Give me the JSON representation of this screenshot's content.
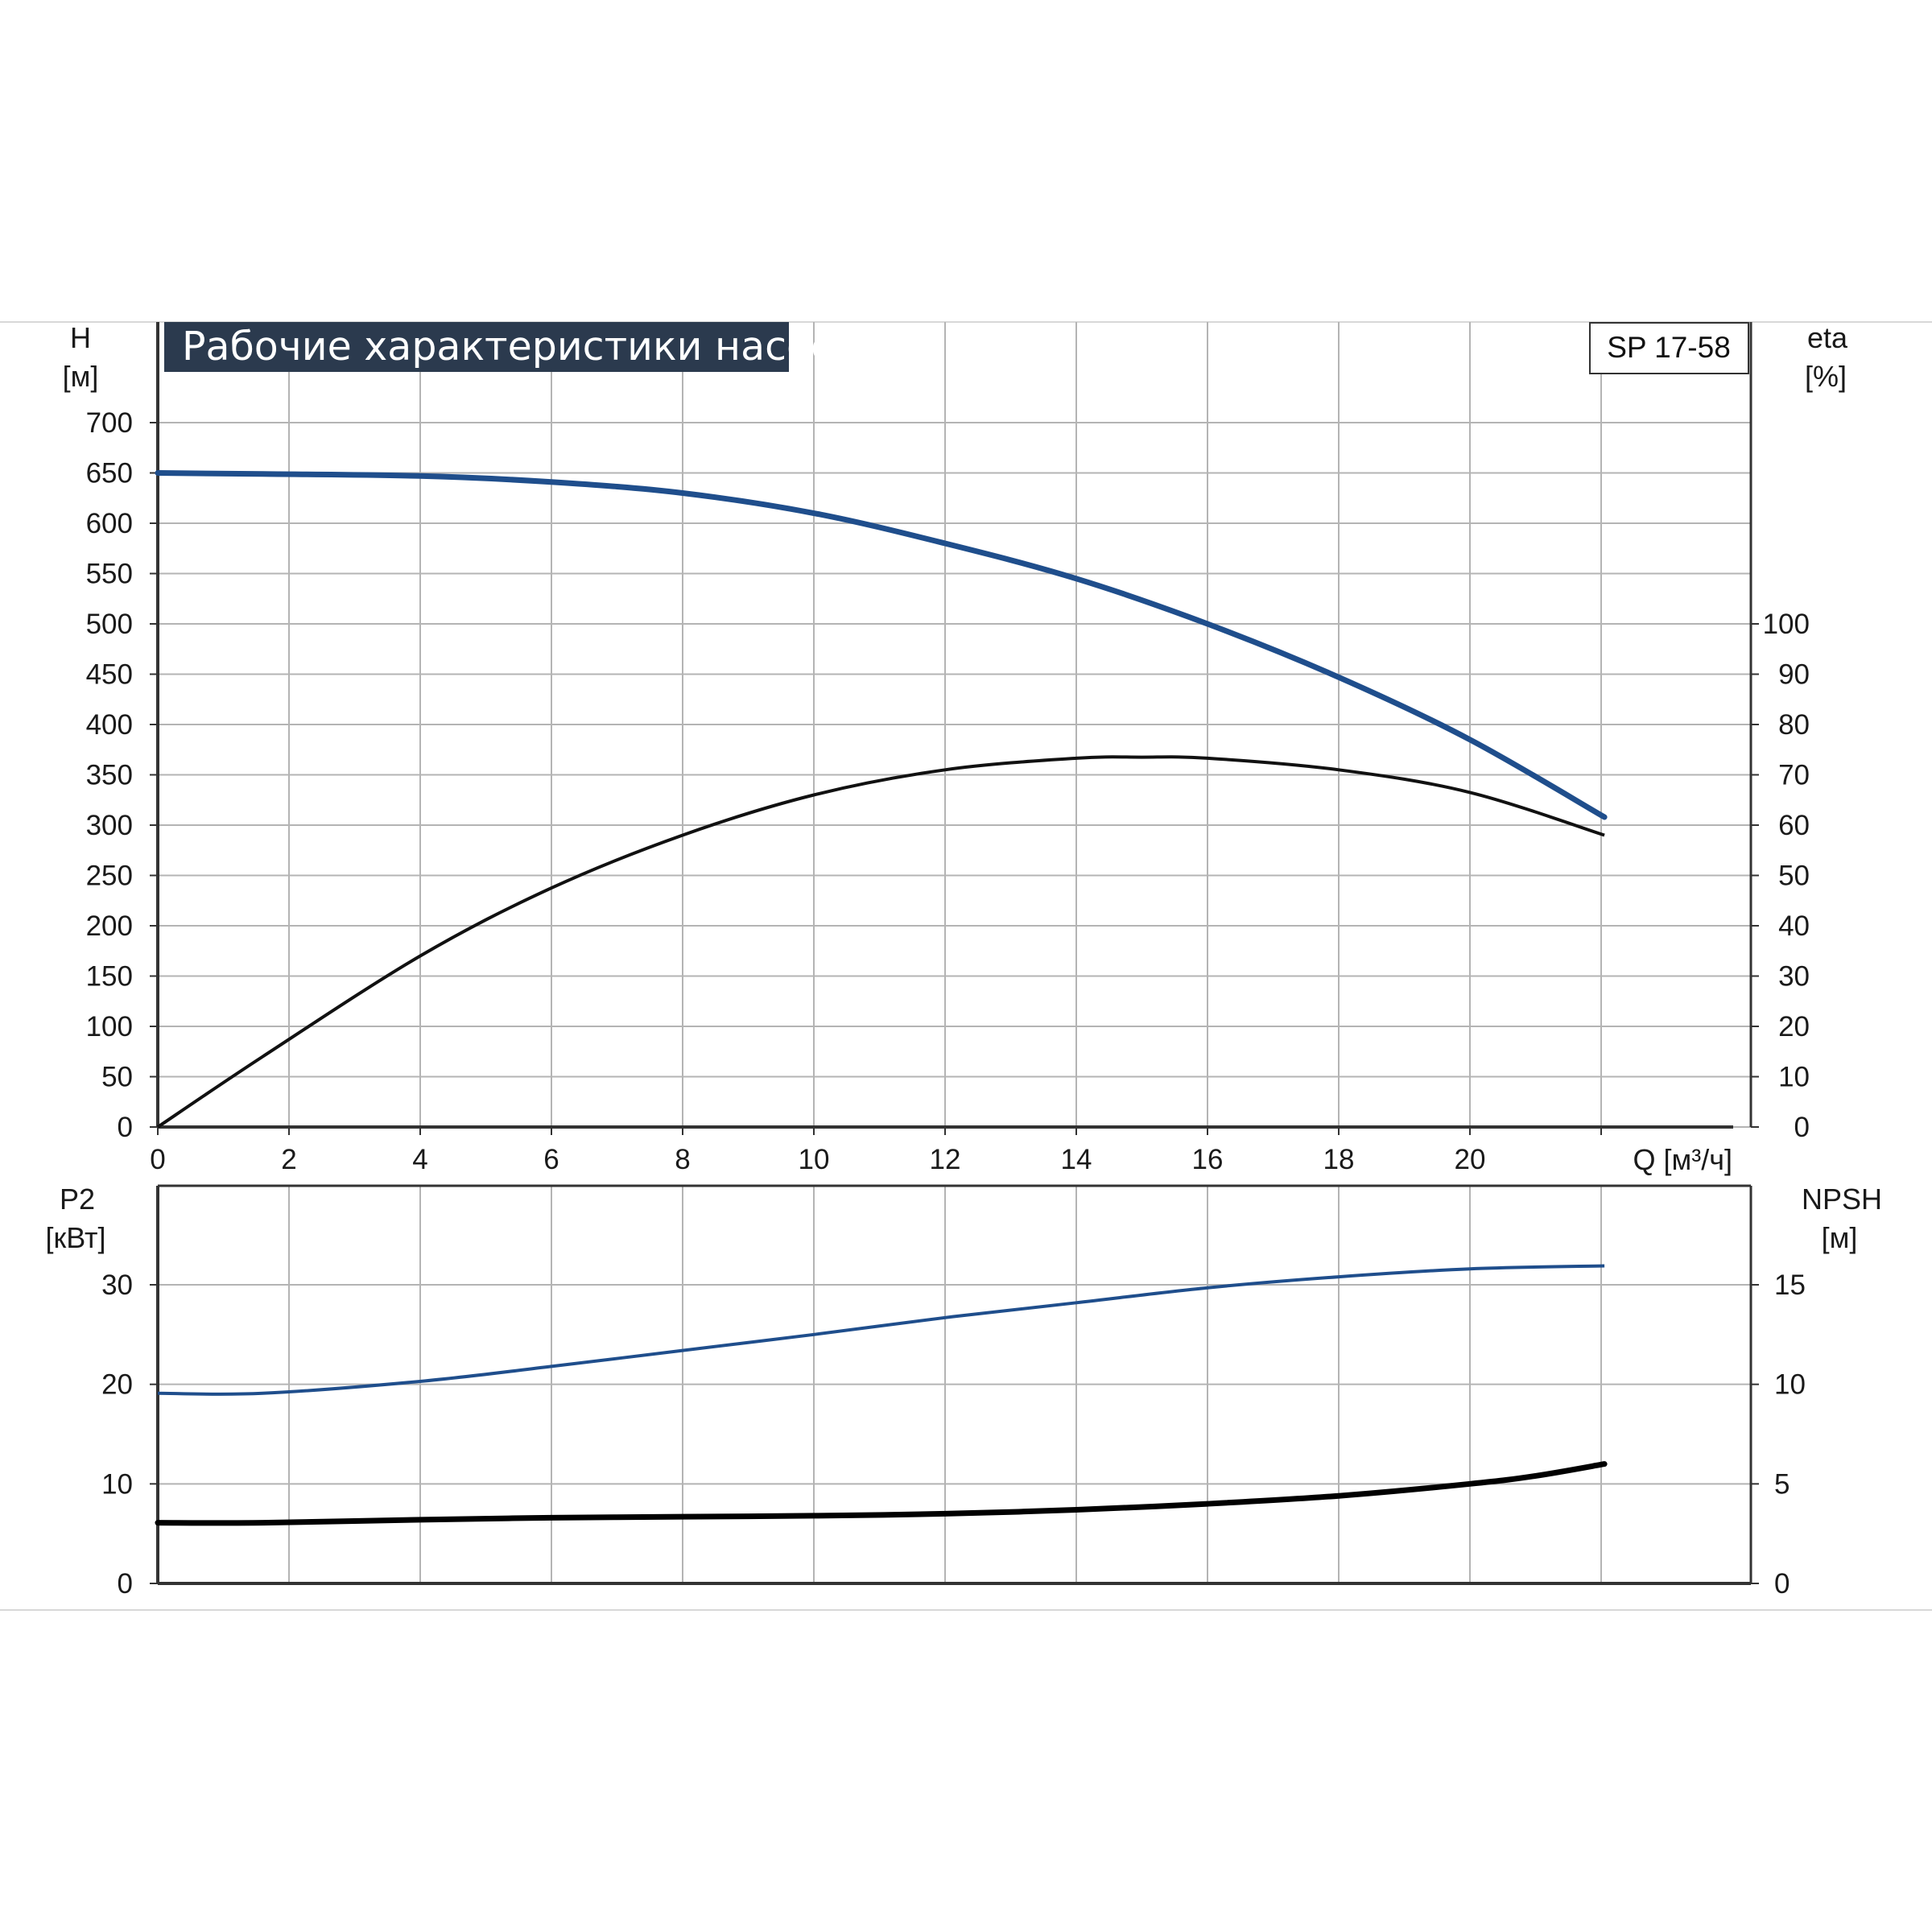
{
  "colors": {
    "head_curve": "#1f4e8c",
    "power_curve": "#1f4e8c",
    "efficiency_curve": "#111111",
    "npsh_curve": "#000000",
    "title_bg": "#2b3a4e",
    "grid": "#b4b4b4",
    "axis": "#333333"
  },
  "chart_data": [
    {
      "type": "line",
      "title": "Рабочие характеристики насоса",
      "model": "SP 17-58",
      "x_label": "Q [м³/ч]",
      "xlim": [
        0,
        22
      ],
      "x_ticks": [
        "0",
        "2",
        "4",
        "6",
        "8",
        "10",
        "12",
        "14",
        "16",
        "18",
        "20"
      ],
      "y_left_label_line1": "H",
      "y_left_label_line2": "[м]",
      "y_left_lim": [
        0,
        700
      ],
      "y_left_ticks": [
        "0",
        "50",
        "100",
        "150",
        "200",
        "250",
        "300",
        "350",
        "400",
        "450",
        "500",
        "550",
        "600",
        "650",
        "700"
      ],
      "y_right_label_line1": "eta",
      "y_right_label_line2": "[%]",
      "y_right_lim": [
        0,
        140
      ],
      "y_right_ticks": [
        "0",
        "10",
        "20",
        "30",
        "40",
        "50",
        "60",
        "70",
        "80",
        "90",
        "100"
      ],
      "grid": true,
      "series": [
        {
          "axis": "left",
          "x": [
            0,
            1.6,
            4,
            6,
            8,
            10,
            12,
            14,
            16,
            18,
            20,
            22.05
          ],
          "y": [
            650,
            649,
            647,
            641,
            630,
            610,
            580,
            545,
            500,
            447,
            385,
            308
          ]
        },
        {
          "axis": "right",
          "x": [
            0,
            1.6,
            4,
            6,
            8,
            10,
            12,
            14,
            15,
            16,
            18,
            20,
            22.05
          ],
          "y": [
            0,
            14,
            34,
            47.5,
            58,
            66,
            71,
            73.3,
            73.5,
            73.3,
            71,
            66.5,
            58
          ]
        }
      ]
    },
    {
      "type": "line",
      "y_left_label_line1": "P2",
      "y_left_label_line2": "[кВт]",
      "y_left_lim": [
        0,
        35
      ],
      "y_left_ticks": [
        "0",
        "10",
        "20",
        "30"
      ],
      "y_right_label_line1": "NPSH",
      "y_right_label_line2": "[м]",
      "y_right_lim": [
        0,
        17.5
      ],
      "y_right_ticks": [
        "0",
        "5",
        "10",
        "15"
      ],
      "xlim": [
        0,
        22
      ],
      "grid": true,
      "series": [
        {
          "axis": "left",
          "x": [
            0,
            1.6,
            4,
            6,
            8,
            10,
            12,
            14,
            16,
            18,
            20,
            22.05
          ],
          "y": [
            19.1,
            19.1,
            20.3,
            21.8,
            23.4,
            25.0,
            26.7,
            28.2,
            29.7,
            30.8,
            31.6,
            31.9
          ]
        },
        {
          "axis": "right",
          "x": [
            0,
            1.6,
            4,
            6,
            8,
            10,
            12,
            14,
            16,
            18,
            20,
            21,
            22.05
          ],
          "y": [
            3.05,
            3.05,
            3.2,
            3.3,
            3.35,
            3.4,
            3.5,
            3.7,
            4.0,
            4.4,
            5.0,
            5.4,
            6.0
          ]
        }
      ]
    }
  ]
}
